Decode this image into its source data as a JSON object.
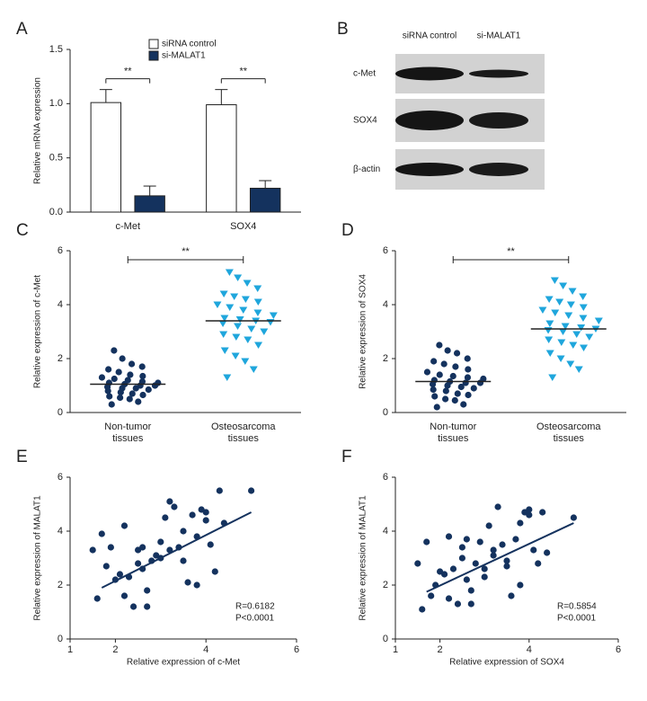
{
  "chart_data": [
    {
      "type": "bar",
      "panel": "A",
      "y_label": "Relative mRNA expression",
      "categories": [
        "c-Met",
        "SOX4"
      ],
      "series": [
        {
          "name": "siRNA control",
          "color": "#ffffff",
          "values": [
            1.01,
            0.99
          ],
          "errors": [
            0.12,
            0.14
          ]
        },
        {
          "name": "si-MALAT1",
          "color": "#14325e",
          "values": [
            0.15,
            0.22
          ],
          "errors": [
            0.09,
            0.07
          ]
        }
      ],
      "significance": [
        "**",
        "**"
      ],
      "ylim": [
        0,
        1.5
      ],
      "yticks": [
        {
          "value": 0,
          "label": "0.0"
        },
        0.5,
        {
          "value": 1,
          "label": "1.0"
        },
        1.5
      ]
    },
    {
      "type": "strip",
      "panel": "C",
      "y_label": "Relative expression of c-Met",
      "categories": [
        "Non-tumor tissues",
        "Osteosarcoma tissues"
      ],
      "groups": [
        {
          "color": "#14325e",
          "marker": "circle",
          "mean": 1.05,
          "values": [
            0.3,
            0.4,
            0.5,
            0.55,
            0.6,
            0.65,
            0.7,
            0.75,
            0.8,
            0.85,
            0.9,
            0.9,
            0.95,
            1.0,
            1.0,
            1.05,
            1.1,
            1.1,
            1.15,
            1.2,
            1.25,
            1.3,
            1.35,
            1.4,
            1.5,
            1.6,
            1.7,
            1.8,
            2.0,
            2.3
          ]
        },
        {
          "color": "#1fa6dc",
          "marker": "triangle-down",
          "mean": 3.4,
          "values": [
            1.3,
            1.6,
            1.9,
            2.1,
            2.3,
            2.5,
            2.7,
            2.8,
            2.9,
            3.0,
            3.1,
            3.2,
            3.3,
            3.35,
            3.4,
            3.45,
            3.5,
            3.6,
            3.7,
            3.8,
            3.9,
            4.0,
            4.1,
            4.2,
            4.3,
            4.4,
            4.6,
            4.8,
            5.0,
            5.2
          ]
        }
      ],
      "significance": "**",
      "ylim": [
        0,
        6
      ],
      "yticks": [
        0,
        2,
        4,
        6
      ]
    },
    {
      "type": "strip",
      "panel": "D",
      "y_label": "Relative expression of SOX4",
      "categories": [
        "Non-tumor tissues",
        "Osteosarcoma tissues"
      ],
      "groups": [
        {
          "color": "#14325e",
          "marker": "circle",
          "mean": 1.15,
          "values": [
            0.2,
            0.3,
            0.45,
            0.5,
            0.6,
            0.65,
            0.7,
            0.8,
            0.85,
            0.9,
            0.95,
            1.0,
            1.05,
            1.1,
            1.1,
            1.15,
            1.2,
            1.25,
            1.3,
            1.35,
            1.4,
            1.5,
            1.6,
            1.7,
            1.8,
            1.9,
            2.0,
            2.2,
            2.3,
            2.5
          ]
        },
        {
          "color": "#1fa6dc",
          "marker": "triangle-down",
          "mean": 3.1,
          "values": [
            1.3,
            1.6,
            1.8,
            2.0,
            2.2,
            2.4,
            2.5,
            2.6,
            2.7,
            2.8,
            2.9,
            3.0,
            3.05,
            3.1,
            3.15,
            3.2,
            3.3,
            3.4,
            3.5,
            3.6,
            3.7,
            3.8,
            3.9,
            4.0,
            4.1,
            4.2,
            4.3,
            4.5,
            4.7,
            4.9
          ]
        }
      ],
      "significance": "**",
      "ylim": [
        0,
        6
      ],
      "yticks": [
        0,
        2,
        4,
        6
      ]
    },
    {
      "type": "scatter",
      "panel": "E",
      "x_label": "Relative expression of c-Met",
      "y_label": "Relative expression of MALAT1",
      "color": "#14325e",
      "x": [
        1.7,
        1.8,
        1.9,
        2.1,
        2.2,
        2.3,
        2.4,
        2.5,
        2.5,
        2.6,
        2.7,
        2.8,
        2.9,
        3.0,
        3.1,
        3.2,
        3.2,
        3.3,
        3.4,
        3.5,
        3.6,
        3.7,
        3.8,
        3.9,
        4.0,
        4.1,
        4.2,
        4.3,
        4.4,
        5.0,
        1.5,
        1.6,
        2.0,
        2.2,
        2.6,
        2.7,
        3.0,
        3.5,
        3.8,
        4.0
      ],
      "y": [
        3.9,
        2.7,
        3.4,
        2.4,
        1.6,
        2.3,
        1.2,
        2.8,
        3.3,
        2.6,
        1.8,
        2.9,
        3.1,
        3.0,
        4.5,
        3.3,
        5.1,
        4.9,
        3.4,
        2.9,
        2.1,
        4.6,
        3.8,
        4.8,
        4.4,
        3.5,
        2.5,
        5.5,
        4.3,
        5.5,
        3.3,
        1.5,
        2.2,
        4.2,
        3.4,
        1.2,
        3.6,
        4.0,
        2.0,
        4.7
      ],
      "fit": {
        "x": [
          1.7,
          5.0
        ],
        "y": [
          1.9,
          4.7
        ]
      },
      "annotations": [
        "R=0.6182",
        "P<0.0001"
      ],
      "xlim": [
        1,
        6
      ],
      "xticks": [
        1,
        2,
        4,
        6
      ],
      "ylim": [
        0,
        6
      ],
      "yticks": [
        0,
        2,
        4,
        6
      ]
    },
    {
      "type": "scatter",
      "panel": "F",
      "x_label": "Relative expression of SOX4",
      "y_label": "Relative expression of MALAT1",
      "color": "#14325e",
      "x": [
        1.7,
        1.8,
        1.9,
        2.1,
        2.2,
        2.3,
        2.4,
        2.5,
        2.5,
        2.6,
        2.7,
        2.8,
        2.9,
        3.0,
        3.1,
        3.2,
        3.2,
        3.3,
        3.4,
        3.5,
        3.6,
        3.7,
        3.8,
        3.9,
        4.0,
        4.1,
        4.2,
        4.3,
        4.4,
        5.0,
        1.5,
        1.6,
        2.0,
        2.2,
        2.6,
        2.7,
        3.0,
        3.5,
        3.8,
        4.0
      ],
      "y": [
        3.6,
        1.6,
        2.0,
        2.4,
        1.5,
        2.6,
        1.3,
        3.0,
        3.4,
        2.2,
        1.8,
        2.8,
        3.6,
        2.3,
        4.2,
        3.1,
        3.3,
        4.9,
        3.5,
        2.9,
        1.6,
        3.7,
        4.3,
        4.7,
        4.6,
        3.3,
        2.8,
        4.7,
        3.2,
        4.5,
        2.8,
        1.1,
        2.5,
        3.8,
        3.7,
        1.3,
        2.6,
        2.7,
        2.0,
        4.8
      ],
      "fit": {
        "x": [
          1.7,
          5.0
        ],
        "y": [
          1.75,
          4.3
        ]
      },
      "annotations": [
        "R=0.5854",
        "P<0.0001"
      ],
      "xlim": [
        1,
        6
      ],
      "xticks": [
        1,
        2,
        4,
        6
      ],
      "ylim": [
        0,
        6
      ],
      "yticks": [
        0,
        2,
        4,
        6
      ]
    }
  ],
  "blot": {
    "panel": "B",
    "columns": [
      "siRNA control",
      "si-MALAT1"
    ],
    "rows": [
      "c-Met",
      "SOX4",
      "β-actin"
    ]
  }
}
